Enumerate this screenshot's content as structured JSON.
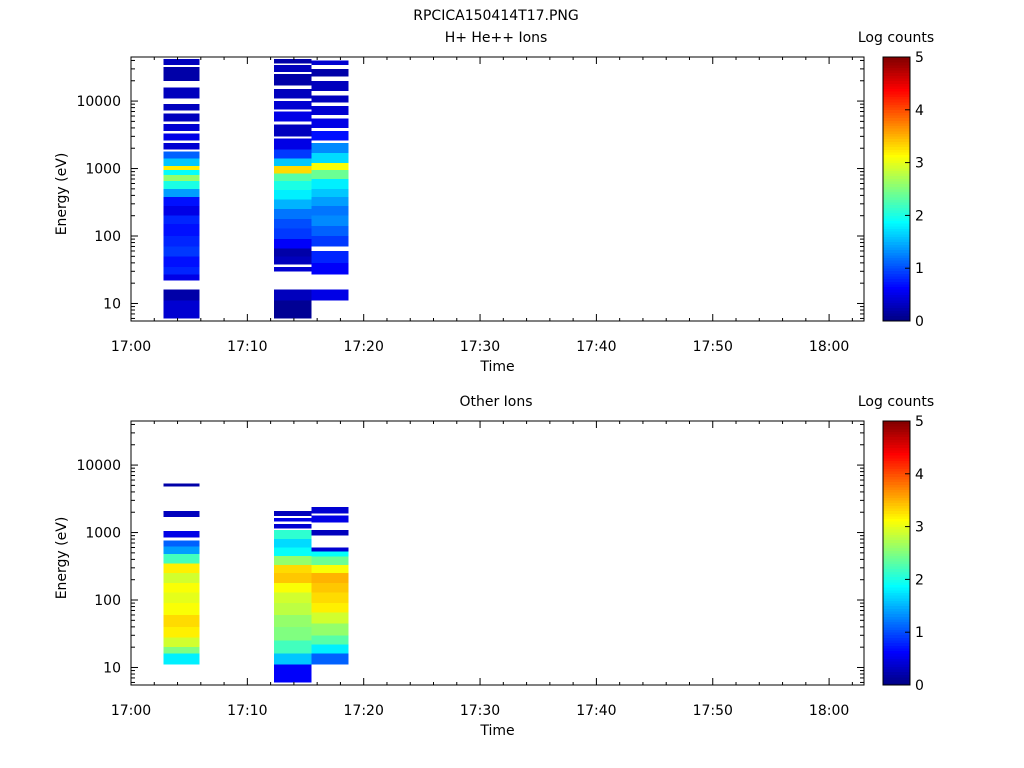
{
  "figure_title": "RPCICA150414T17.PNG",
  "colorbar": {
    "label": "Log counts",
    "ticks": [
      "0",
      "1",
      "2",
      "3",
      "4",
      "5"
    ],
    "range": [
      0,
      5
    ]
  },
  "chart_data": [
    {
      "type": "heatmap",
      "title": "H+ He++ Ions",
      "xlabel": "Time",
      "ylabel": "Energy (eV)",
      "x_ticks": [
        "17:00",
        "17:10",
        "17:20",
        "17:30",
        "17:40",
        "17:50",
        "18:00"
      ],
      "xlim_minutes": [
        0,
        63
      ],
      "y_scale": "log",
      "y_ticks": [
        "10",
        "100",
        "1000",
        "10000"
      ],
      "ylim": [
        5.5,
        45000
      ],
      "columns": [
        {
          "t_start_min": 2.8,
          "t_end_min": 5.9,
          "cells": [
            [
              6,
              11,
              0.4
            ],
            [
              11,
              16,
              0.2
            ],
            [
              22,
              27,
              0.5
            ],
            [
              27,
              35,
              0.8
            ],
            [
              35,
              50,
              0.7
            ],
            [
              50,
              70,
              0.9
            ],
            [
              70,
              100,
              0.8
            ],
            [
              100,
              150,
              0.7
            ],
            [
              150,
              200,
              0.8
            ],
            [
              200,
              280,
              0.5
            ],
            [
              280,
              380,
              0.7
            ],
            [
              380,
              500,
              1.4
            ],
            [
              500,
              650,
              2.0
            ],
            [
              650,
              800,
              2.6
            ],
            [
              800,
              950,
              1.9
            ],
            [
              950,
              1100,
              3.2
            ],
            [
              1100,
              1400,
              1.6
            ],
            [
              1400,
              1800,
              1.1
            ],
            [
              1900,
              2400,
              0.4
            ],
            [
              2600,
              3300,
              0.5
            ],
            [
              3600,
              4600,
              0.4
            ],
            [
              5000,
              6500,
              0.3
            ],
            [
              7200,
              9000,
              0.3
            ],
            [
              11000,
              16000,
              0.3
            ],
            [
              20000,
              32000,
              0.2
            ],
            [
              34000,
              42000,
              0.3
            ]
          ]
        },
        {
          "t_start_min": 12.3,
          "t_end_min": 15.5,
          "cells": [
            [
              6,
              11,
              0.1
            ],
            [
              11,
              16,
              0.3
            ],
            [
              30,
              35,
              0.4
            ],
            [
              38,
              50,
              0.3
            ],
            [
              50,
              65,
              0.2
            ],
            [
              65,
              90,
              0.6
            ],
            [
              90,
              130,
              0.9
            ],
            [
              130,
              180,
              1.0
            ],
            [
              180,
              250,
              1.2
            ],
            [
              250,
              350,
              1.5
            ],
            [
              350,
              480,
              1.8
            ],
            [
              480,
              650,
              2.0
            ],
            [
              650,
              850,
              2.3
            ],
            [
              850,
              1100,
              3.3
            ],
            [
              1100,
              1400,
              1.6
            ],
            [
              1400,
              1900,
              0.9
            ],
            [
              1900,
              2800,
              0.5
            ],
            [
              3000,
              4500,
              0.3
            ],
            [
              5000,
              7000,
              0.5
            ],
            [
              7500,
              10000,
              0.4
            ],
            [
              11000,
              15000,
              0.3
            ],
            [
              17000,
              25000,
              0.2
            ],
            [
              27000,
              34000,
              0.3
            ],
            [
              36000,
              42000,
              0.2
            ]
          ]
        },
        {
          "t_start_min": 15.5,
          "t_end_min": 18.7,
          "cells": [
            [
              11,
              16,
              0.5
            ],
            [
              27,
              40,
              0.6
            ],
            [
              40,
              60,
              0.8
            ],
            [
              70,
              100,
              0.9
            ],
            [
              100,
              140,
              1.1
            ],
            [
              140,
              200,
              1.3
            ],
            [
              200,
              280,
              1.2
            ],
            [
              280,
              380,
              1.4
            ],
            [
              380,
              500,
              1.6
            ],
            [
              500,
              700,
              1.8
            ],
            [
              700,
              950,
              2.4
            ],
            [
              950,
              1200,
              3.1
            ],
            [
              1200,
              1700,
              1.7
            ],
            [
              1700,
              2400,
              1.3
            ],
            [
              2600,
              3600,
              0.7
            ],
            [
              4000,
              5500,
              0.5
            ],
            [
              6200,
              8500,
              0.4
            ],
            [
              9500,
              12000,
              0.3
            ],
            [
              14000,
              20000,
              0.3
            ],
            [
              23000,
              30000,
              0.2
            ],
            [
              34000,
              40000,
              0.4
            ]
          ]
        }
      ]
    },
    {
      "type": "heatmap",
      "title": "Other Ions",
      "xlabel": "Time",
      "ylabel": "Energy (eV)",
      "x_ticks": [
        "17:00",
        "17:10",
        "17:20",
        "17:30",
        "17:40",
        "17:50",
        "18:00"
      ],
      "xlim_minutes": [
        0,
        63
      ],
      "y_scale": "log",
      "y_ticks": [
        "10",
        "100",
        "1000",
        "10000"
      ],
      "ylim": [
        5.5,
        45000
      ],
      "columns": [
        {
          "t_start_min": 2.8,
          "t_end_min": 5.9,
          "cells": [
            [
              11,
              16,
              1.8
            ],
            [
              16,
              20,
              2.5
            ],
            [
              20,
              28,
              2.9
            ],
            [
              28,
              40,
              3.2
            ],
            [
              40,
              60,
              3.3
            ],
            [
              60,
              90,
              3.1
            ],
            [
              90,
              130,
              3.0
            ],
            [
              130,
              180,
              3.1
            ],
            [
              180,
              250,
              2.9
            ],
            [
              250,
              350,
              3.2
            ],
            [
              350,
              480,
              2.2
            ],
            [
              480,
              620,
              1.4
            ],
            [
              620,
              760,
              1.1
            ],
            [
              850,
              1050,
              0.5
            ],
            [
              1700,
              2100,
              0.3
            ],
            [
              4800,
              5300,
              0.2
            ]
          ]
        },
        {
          "t_start_min": 12.3,
          "t_end_min": 15.5,
          "cells": [
            [
              6,
              11,
              0.6
            ],
            [
              11,
              16,
              1.6
            ],
            [
              16,
              25,
              2.2
            ],
            [
              25,
              40,
              2.5
            ],
            [
              40,
              60,
              2.6
            ],
            [
              60,
              90,
              2.8
            ],
            [
              90,
              130,
              2.9
            ],
            [
              130,
              180,
              3.1
            ],
            [
              180,
              250,
              3.4
            ],
            [
              250,
              330,
              3.3
            ],
            [
              330,
              450,
              2.6
            ],
            [
              450,
              600,
              1.9
            ],
            [
              600,
              800,
              1.7
            ],
            [
              800,
              1100,
              2.1
            ],
            [
              1150,
              1350,
              0.4
            ],
            [
              1450,
              1650,
              0.5
            ],
            [
              1750,
              2100,
              0.3
            ]
          ]
        },
        {
          "t_start_min": 15.5,
          "t_end_min": 18.7,
          "cells": [
            [
              11,
              16,
              1.1
            ],
            [
              16,
              22,
              1.8
            ],
            [
              22,
              30,
              2.3
            ],
            [
              30,
              45,
              2.6
            ],
            [
              45,
              65,
              2.9
            ],
            [
              65,
              90,
              3.2
            ],
            [
              90,
              130,
              3.3
            ],
            [
              130,
              180,
              3.4
            ],
            [
              180,
              250,
              3.5
            ],
            [
              250,
              330,
              3.1
            ],
            [
              330,
              440,
              2.4
            ],
            [
              440,
              520,
              1.9
            ],
            [
              520,
              600,
              0.4
            ],
            [
              900,
              1100,
              0.3
            ],
            [
              1400,
              1800,
              0.5
            ],
            [
              1900,
              2400,
              0.4
            ]
          ]
        }
      ]
    }
  ]
}
